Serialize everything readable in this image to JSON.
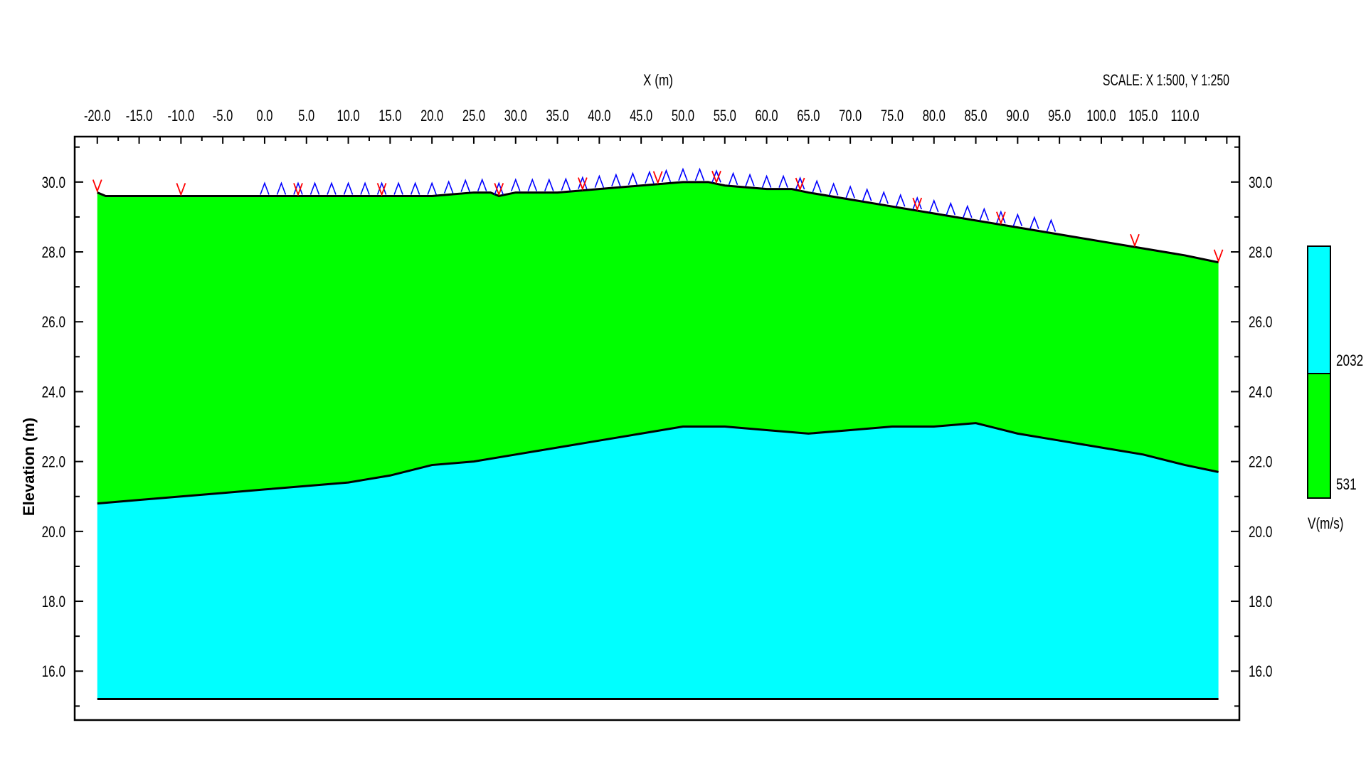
{
  "chart_data": {
    "type": "area",
    "xlabel": "X (m)",
    "ylabel": "Elevation (m)",
    "scale_text": "SCALE: X 1:500, Y 1:250",
    "x_ticks": [
      "-20.0",
      "-15.0",
      "-10.0",
      "-5.0",
      "0.0",
      "5.0",
      "10.0",
      "15.0",
      "20.0",
      "25.0",
      "30.0",
      "35.0",
      "40.0",
      "45.0",
      "50.0",
      "55.0",
      "60.0",
      "65.0",
      "70.0",
      "75.0",
      "80.0",
      "85.0",
      "90.0",
      "95.0",
      "100.0",
      "105.0",
      "110.0"
    ],
    "y_ticks": [
      "16.0",
      "18.0",
      "20.0",
      "22.0",
      "24.0",
      "26.0",
      "28.0",
      "30.0"
    ],
    "xlim": [
      -22.7,
      116.5
    ],
    "ylim": [
      14.6,
      31.3
    ],
    "model_x_range": [
      -20.0,
      114.0
    ],
    "model_bottom": 15.2,
    "grid": false,
    "layers": [
      {
        "name": "531",
        "color": "#00ff00",
        "velocity": 531
      },
      {
        "name": "2032",
        "color": "#00ffff",
        "velocity": 2032
      }
    ],
    "surface": {
      "x": [
        -20.0,
        -19.0,
        -10.0,
        0.0,
        10.0,
        20.0,
        25.0,
        27.0,
        28.0,
        30.0,
        35.0,
        40.0,
        45.0,
        50.0,
        53.0,
        55.0,
        60.0,
        63.0,
        65.0,
        70.0,
        75.0,
        80.0,
        85.0,
        90.0,
        95.0,
        100.0,
        105.0,
        110.0,
        114.0
      ],
      "y": [
        29.7,
        29.6,
        29.6,
        29.6,
        29.6,
        29.6,
        29.7,
        29.7,
        29.6,
        29.7,
        29.7,
        29.8,
        29.9,
        30.0,
        30.0,
        29.9,
        29.8,
        29.8,
        29.7,
        29.5,
        29.3,
        29.1,
        28.9,
        28.7,
        28.5,
        28.3,
        28.1,
        27.9,
        27.7
      ]
    },
    "refractor": {
      "x": [
        -20.0,
        -15.0,
        -10.0,
        -5.0,
        0.0,
        5.0,
        10.0,
        15.0,
        20.0,
        25.0,
        30.0,
        35.0,
        40.0,
        45.0,
        50.0,
        55.0,
        60.0,
        65.0,
        70.0,
        75.0,
        80.0,
        85.0,
        90.0,
        95.0,
        100.0,
        105.0,
        110.0,
        114.0
      ],
      "y": [
        20.8,
        20.9,
        21.0,
        21.1,
        21.2,
        21.3,
        21.4,
        21.6,
        21.9,
        22.0,
        22.2,
        22.4,
        22.6,
        22.8,
        23.0,
        23.0,
        22.9,
        22.8,
        22.9,
        23.0,
        23.0,
        23.1,
        22.8,
        22.6,
        22.4,
        22.2,
        21.9,
        21.7
      ]
    },
    "geophones": {
      "x": [
        0.0,
        2.0,
        4.0,
        6.0,
        8.0,
        10.0,
        12.0,
        14.0,
        16.0,
        18.0,
        20.0,
        22.0,
        24.0,
        26.0,
        28.0,
        30.0,
        32.0,
        34.0,
        36.0,
        38.0,
        40.0,
        42.0,
        44.0,
        46.0,
        48.0,
        50.0,
        52.0,
        54.0,
        56.0,
        58.0,
        60.0,
        62.0,
        64.0,
        66.0,
        68.0,
        70.0,
        72.0,
        74.0,
        76.0,
        78.0,
        80.0,
        82.0,
        84.0,
        86.0,
        88.0,
        90.0,
        92.0,
        94.0
      ]
    },
    "shots": {
      "x": [
        -20.0,
        -10.0,
        4.0,
        14.0,
        28.0,
        38.0,
        47.0,
        54.0,
        64.0,
        78.0,
        88.0,
        104.0,
        114.0
      ]
    },
    "legend": {
      "title": "V(m/s)",
      "entries": [
        "2032",
        "531"
      ]
    }
  }
}
